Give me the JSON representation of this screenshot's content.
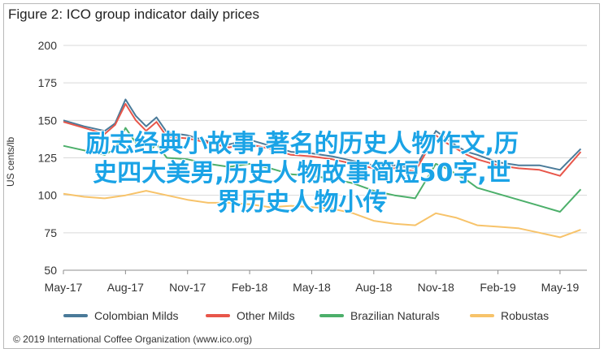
{
  "figure": {
    "title": "Figure 2: ICO group indicator daily prices",
    "copyright": "© 2019 International Coffee Organization (www.ico.org)"
  },
  "overlay": {
    "line1": "励志经典小故事,著名的历史人物作文,历",
    "line2": "史四大美男,历史人物故事简短50字,世",
    "line3": "界历史人物小传"
  },
  "colors": {
    "colombian": "#4a7a99",
    "other": "#e8564a",
    "brazilian": "#4caf6a",
    "robustas": "#f7c36a",
    "grid": "#d9d9d9",
    "axis": "#8c8c8c"
  },
  "chart_data": {
    "type": "line",
    "title": "Figure 2: ICO group indicator daily prices",
    "ylabel": "US cents/lb",
    "xlabel": "",
    "ylim": [
      50,
      200
    ],
    "yticks": [
      50,
      75,
      100,
      125,
      150,
      175,
      200
    ],
    "x_labels": [
      "May-17",
      "Aug-17",
      "Nov-17",
      "Feb-18",
      "May-18",
      "Aug-18",
      "Nov-18",
      "Feb-19",
      "May-19"
    ],
    "x_months": [
      0,
      3,
      6,
      9,
      12,
      15,
      18,
      21,
      24
    ],
    "grid": true,
    "legend": "bottom",
    "series": [
      {
        "name": "Colombian Milds",
        "x": [
          0,
          1,
          2,
          2.5,
          3,
          3.5,
          4,
          4.5,
          5,
          6,
          7,
          8,
          9,
          10,
          11,
          12,
          13,
          14,
          15,
          16,
          17,
          18,
          18.5,
          19,
          19.5,
          20,
          21,
          22,
          23,
          24,
          25
        ],
        "values": [
          150,
          146,
          143,
          148,
          164,
          153,
          146,
          152,
          142,
          140,
          136,
          134,
          137,
          133,
          129,
          128,
          126,
          123,
          120,
          120,
          118,
          143,
          138,
          133,
          129,
          127,
          122,
          120,
          120,
          117,
          131
        ]
      },
      {
        "name": "Other Milds",
        "x": [
          0,
          1,
          2,
          2.5,
          3,
          3.5,
          4,
          4.5,
          5,
          6,
          7,
          8,
          9,
          10,
          11,
          12,
          13,
          14,
          15,
          16,
          17,
          18,
          18.5,
          19,
          19.5,
          20,
          21,
          22,
          23,
          24,
          25
        ],
        "values": [
          149,
          145,
          141,
          147,
          161,
          150,
          143,
          149,
          139,
          138,
          135,
          132,
          134,
          131,
          127,
          126,
          124,
          121,
          118,
          118,
          116,
          140,
          135,
          131,
          127,
          124,
          120,
          118,
          117,
          113,
          129
        ]
      },
      {
        "name": "Brazilian Naturals",
        "x": [
          0,
          1,
          2,
          2.5,
          3,
          3.5,
          4,
          4.5,
          5,
          6,
          7,
          8,
          9,
          10,
          11,
          12,
          13,
          14,
          15,
          16,
          17,
          18,
          18.5,
          19,
          19.5,
          20,
          21,
          22,
          23,
          24,
          25
        ],
        "values": [
          133,
          130,
          127,
          131,
          145,
          135,
          128,
          134,
          125,
          124,
          121,
          119,
          121,
          118,
          114,
          113,
          111,
          108,
          103,
          100,
          98,
          121,
          118,
          114,
          110,
          105,
          101,
          97,
          93,
          89,
          104
        ]
      },
      {
        "name": "Robustas",
        "x": [
          0,
          1,
          2,
          3,
          4,
          5,
          6,
          7,
          8,
          9,
          10,
          11,
          12,
          13,
          14,
          15,
          16,
          17,
          18,
          19,
          20,
          21,
          22,
          23,
          24,
          25
        ],
        "values": [
          101,
          99,
          98,
          100,
          103,
          100,
          97,
          95,
          95,
          94,
          92,
          93,
          92,
          91,
          88,
          83,
          81,
          80,
          88,
          85,
          80,
          79,
          78,
          75,
          72,
          77
        ]
      }
    ]
  }
}
